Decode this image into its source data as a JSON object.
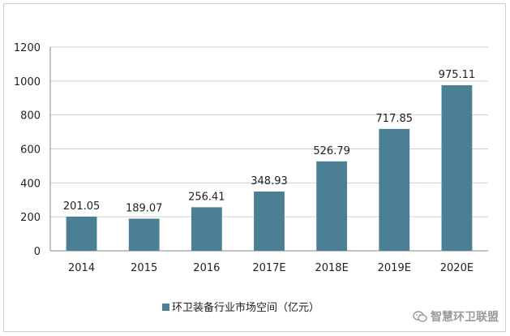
{
  "chart_data": {
    "type": "bar",
    "categories": [
      "2014",
      "2015",
      "2016",
      "2017E",
      "2018E",
      "2019E",
      "2020E"
    ],
    "series": [
      {
        "name": "环卫装备行业市场空间（亿元）",
        "values": [
          201.05,
          189.07,
          256.41,
          348.93,
          526.79,
          717.85,
          975.11
        ]
      }
    ],
    "data_labels": [
      "201.05",
      "189.07",
      "256.41",
      "348.93",
      "526.79",
      "717.85",
      "975.11"
    ],
    "y_ticks": [
      "0",
      "200",
      "400",
      "600",
      "800",
      "1000",
      "1200"
    ],
    "ylim": [
      0,
      1200
    ],
    "grid": true,
    "legend_position": "bottom",
    "bar_color": "#4a7f95"
  },
  "watermark": {
    "text": "智慧环卫联盟",
    "icon": "wechat-icon"
  }
}
